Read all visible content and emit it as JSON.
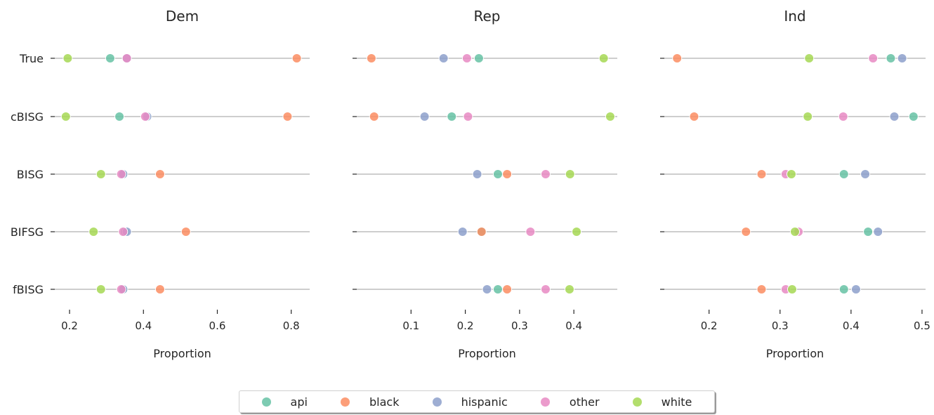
{
  "chart_data": {
    "type": "scatter",
    "xlabel": "Proportion",
    "categories": [
      "True",
      "cBISG",
      "BISG",
      "BIFSG",
      "fBISG"
    ],
    "legend_position": "bottom-center",
    "series": [
      {
        "name": "api",
        "color": "#66c2a5"
      },
      {
        "name": "black",
        "color": "#fc8d62"
      },
      {
        "name": "hispanic",
        "color": "#8da0cb"
      },
      {
        "name": "other",
        "color": "#e78ac3"
      },
      {
        "name": "white",
        "color": "#a6d854"
      }
    ],
    "panels": [
      {
        "title": "Dem",
        "xlim": [
          0.16,
          0.85
        ],
        "xticks": [
          0.2,
          0.4,
          0.6,
          0.8
        ],
        "xtick_labels": [
          "0.2",
          "0.4",
          "0.6",
          "0.8"
        ],
        "values": {
          "api": [
            0.31,
            0.335,
            0.345,
            0.35,
            0.345
          ],
          "black": [
            0.815,
            0.79,
            0.445,
            0.515,
            0.445
          ],
          "hispanic": [
            0.355,
            0.41,
            0.345,
            0.355,
            0.345
          ],
          "other": [
            0.355,
            0.405,
            0.34,
            0.345,
            0.34
          ],
          "white": [
            0.195,
            0.19,
            0.285,
            0.265,
            0.285
          ]
        }
      },
      {
        "title": "Rep",
        "xlim": [
          0.0,
          0.48
        ],
        "xticks": [
          0.1,
          0.2,
          0.3,
          0.4
        ],
        "xtick_labels": [
          "0.1",
          "0.2",
          "0.3",
          "0.4"
        ],
        "values": {
          "api": [
            0.225,
            0.175,
            0.26,
            0.23,
            0.26
          ],
          "black": [
            0.027,
            0.032,
            0.277,
            0.23,
            0.277
          ],
          "hispanic": [
            0.16,
            0.125,
            0.222,
            0.195,
            0.24
          ],
          "other": [
            0.203,
            0.205,
            0.348,
            0.32,
            0.348
          ],
          "white": [
            0.455,
            0.467,
            0.393,
            0.405,
            0.392
          ]
        }
      },
      {
        "title": "Ind",
        "xlim": [
          0.137,
          0.505
        ],
        "xticks": [
          0.2,
          0.3,
          0.4,
          0.5
        ],
        "xtick_labels": [
          "0.2",
          "0.3",
          "0.4",
          "0.5"
        ],
        "values": {
          "api": [
            0.456,
            0.488,
            0.39,
            0.424,
            0.39
          ],
          "black": [
            0.155,
            0.179,
            0.274,
            0.252,
            0.274
          ],
          "hispanic": [
            0.472,
            0.461,
            0.42,
            0.438,
            0.407
          ],
          "other": [
            0.431,
            0.389,
            0.308,
            0.326,
            0.308
          ],
          "white": [
            0.341,
            0.339,
            0.316,
            0.321,
            0.317
          ]
        }
      }
    ]
  }
}
